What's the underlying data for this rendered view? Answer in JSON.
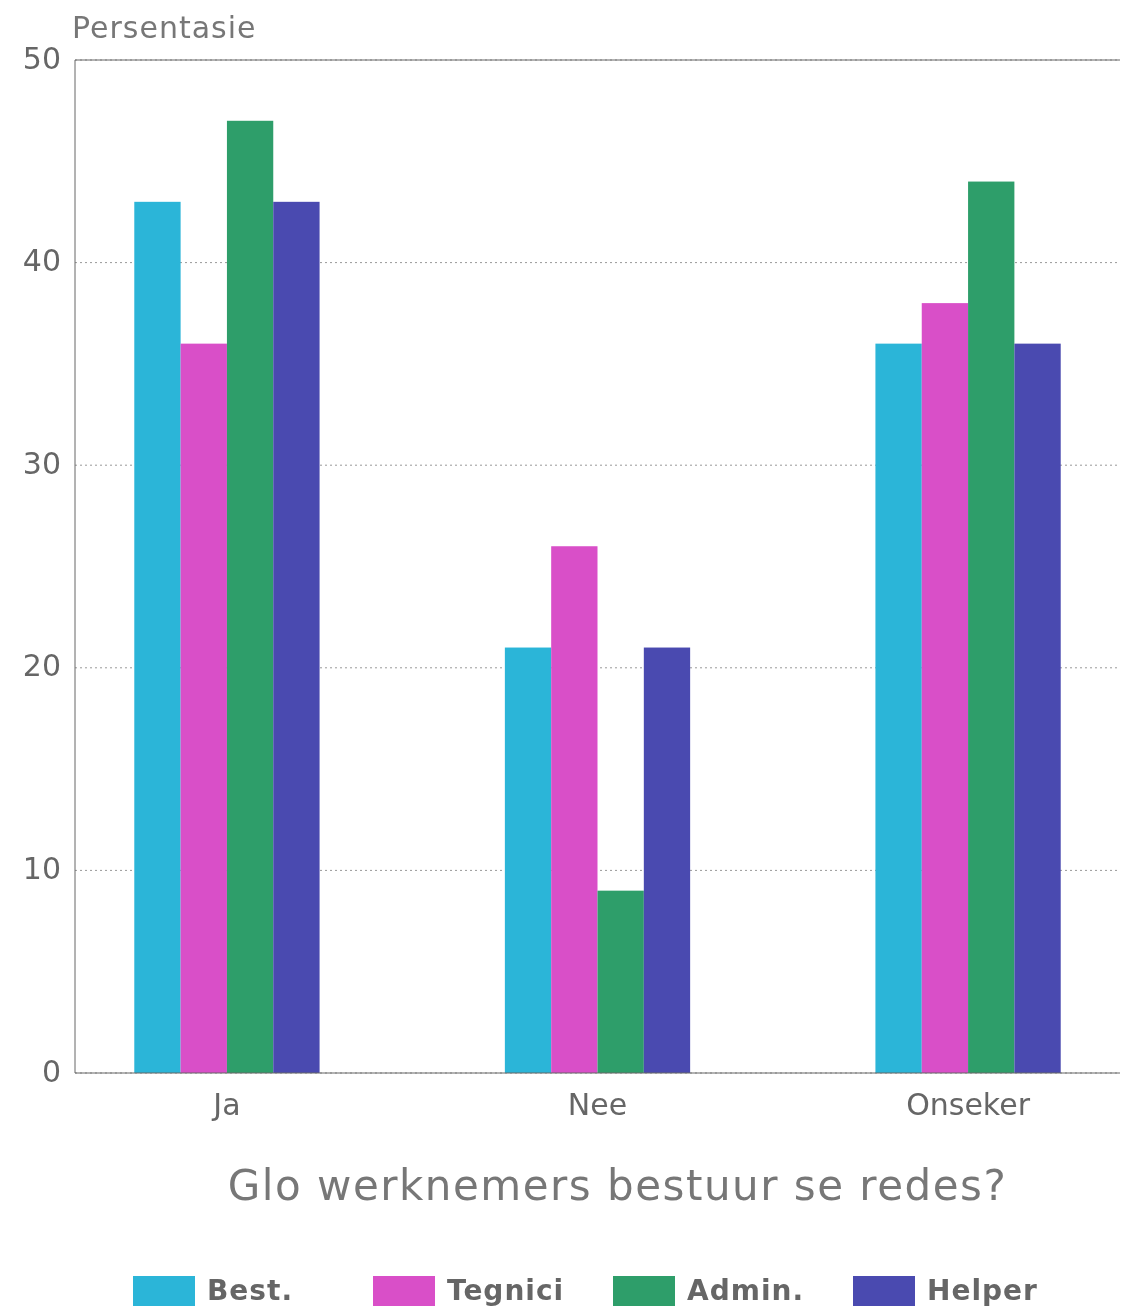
{
  "chart_data": {
    "type": "bar",
    "xlabel": "Glo werknemers bestuur se redes?",
    "ylabel": "Persentasie",
    "categories": [
      "Ja",
      "Nee",
      "Onseker"
    ],
    "series": [
      {
        "name": "Best.",
        "color": "#2bb5d8",
        "values": [
          43,
          21,
          36
        ]
      },
      {
        "name": "Tegnici",
        "color": "#d94fc8",
        "values": [
          36,
          26,
          38
        ]
      },
      {
        "name": "Admin.",
        "color": "#2e9e6a",
        "values": [
          47,
          9,
          44
        ]
      },
      {
        "name": "Helper",
        "color": "#4a4ab0",
        "values": [
          43,
          21,
          36
        ]
      }
    ],
    "ylim": [
      0,
      50
    ],
    "yticks": [
      0,
      10,
      20,
      30,
      40,
      50
    ],
    "grid": "y",
    "legend": "bottom"
  }
}
